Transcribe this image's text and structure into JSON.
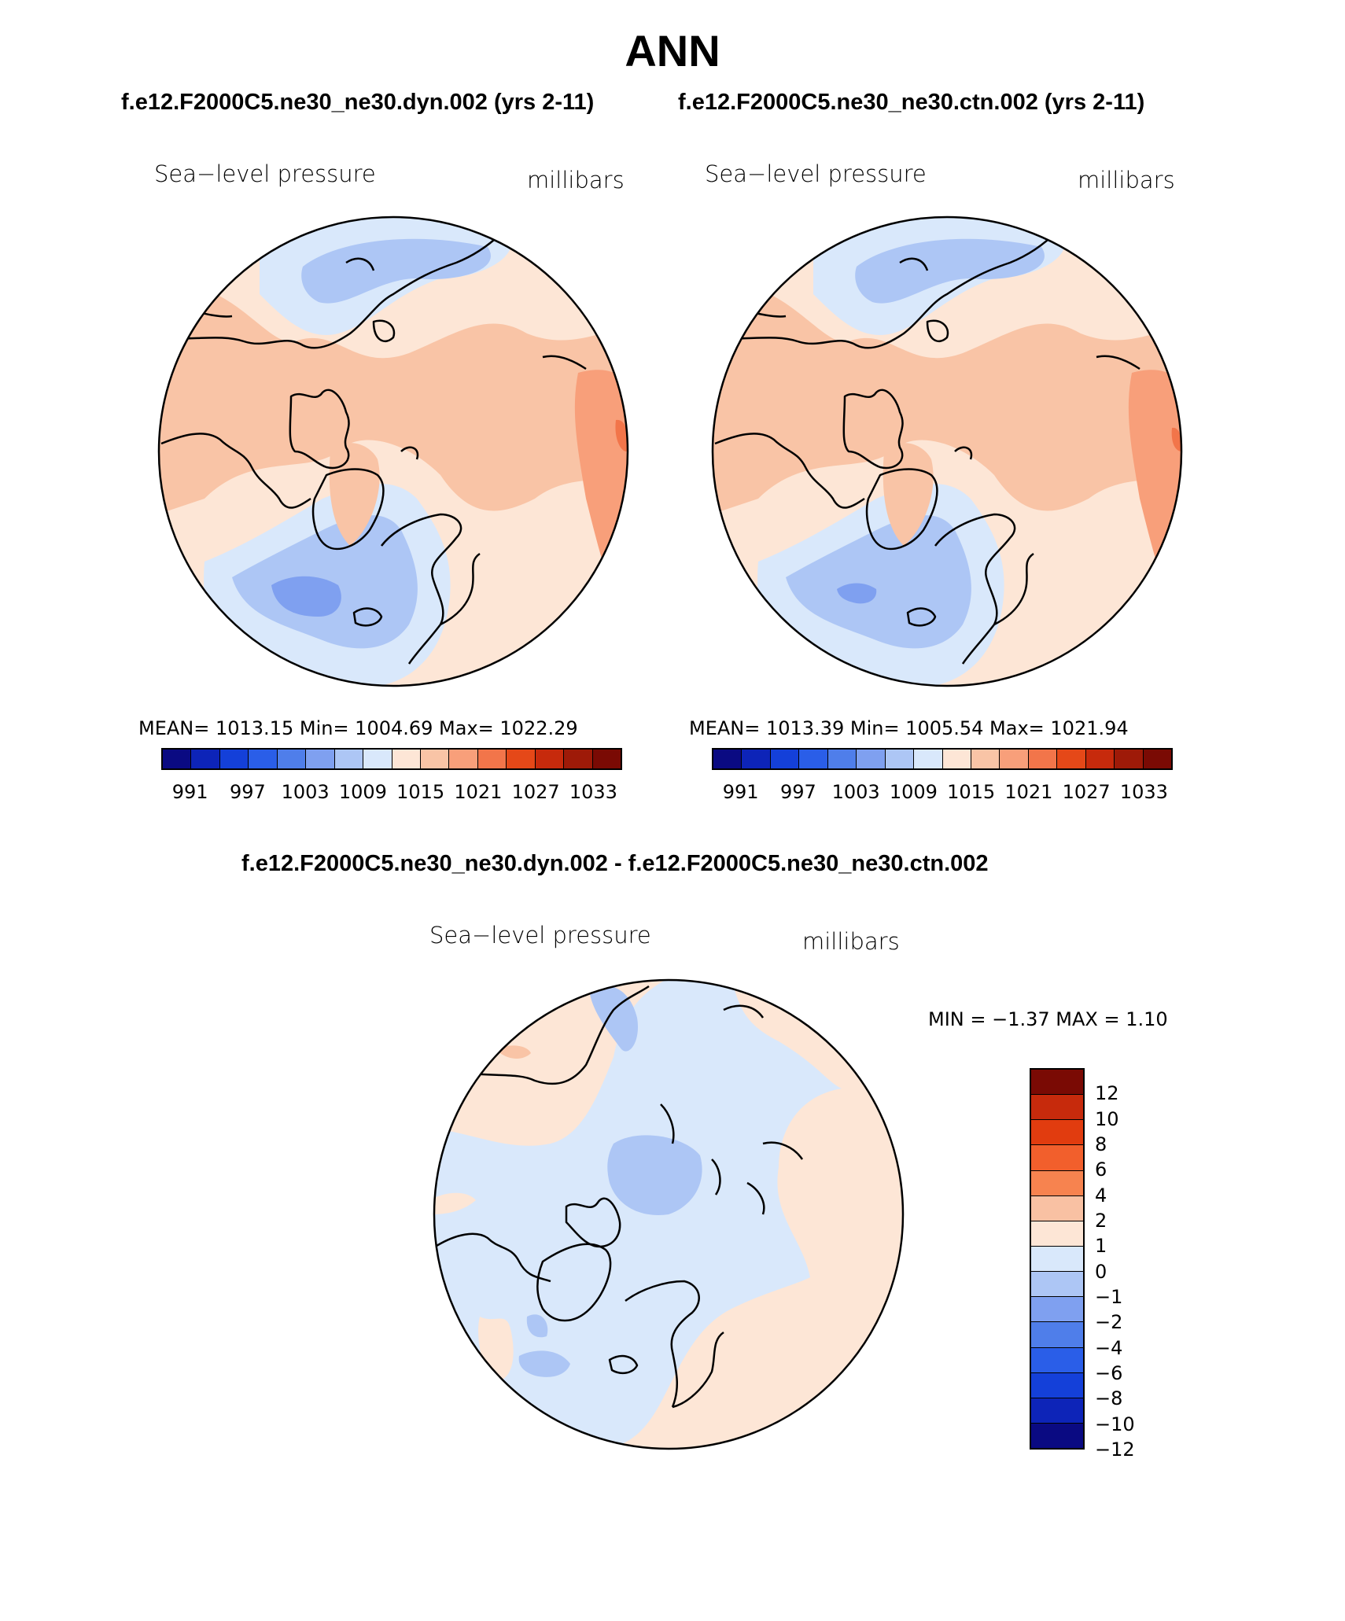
{
  "title": "ANN",
  "top_subtitle_left": "f.e12.F2000C5.ne30_ne30.dyn.002 (yrs 2-11)",
  "top_subtitle_right": "f.e12.F2000C5.ne30_ne30.ctn.002 (yrs 2-11)",
  "diff_subtitle": "f.e12.F2000C5.ne30_ne30.dyn.002 - f.e12.F2000C5.ne30_ne30.ctn.002",
  "panels": [
    {
      "variable": "Sea−level pressure",
      "units": "millibars",
      "stats": "MEAN= 1013.15   Min= 1004.69   Max= 1022.29"
    },
    {
      "variable": "Sea−level pressure",
      "units": "millibars",
      "stats": "MEAN= 1013.39   Min= 1005.54   Max= 1021.94"
    }
  ],
  "diff_panel": {
    "variable": "Sea−level pressure",
    "units": "millibars",
    "minmax": "MIN =   −1.37  MAX =     1.10"
  },
  "abs_colorbar": {
    "colors": [
      "#0a0a82",
      "#0d24b8",
      "#1440d9",
      "#2a5ee8",
      "#4f7eea",
      "#7fa0f0",
      "#adc6f5",
      "#d9e8fb",
      "#fde6d6",
      "#f9c4a6",
      "#f89f7a",
      "#f2754a",
      "#e54818",
      "#c72a0c",
      "#9e1a08",
      "#7a0a04"
    ],
    "tick_labels": [
      "991",
      "997",
      "1003",
      "1009",
      "1015",
      "1021",
      "1027",
      "1033"
    ]
  },
  "diff_colorbar": {
    "colors_top_to_bottom": [
      "#7a0a04",
      "#c72a0c",
      "#e13c0f",
      "#f25f2c",
      "#f7834f",
      "#f9c1a3",
      "#fde6d6",
      "#d9e8fb",
      "#adc6f5",
      "#7fa0f0",
      "#4f7eea",
      "#2a5ee8",
      "#1440d9",
      "#0d24b8",
      "#0a0a82"
    ],
    "tick_labels": [
      "12",
      "10",
      "8",
      "6",
      "4",
      "2",
      "1",
      "0",
      "−1",
      "−2",
      "−4",
      "−6",
      "−8",
      "−10",
      "−12"
    ]
  },
  "chart_data": [
    {
      "type": "heatmap",
      "title": "Sea−level pressure",
      "units": "millibars",
      "run": "f.e12.F2000C5.ne30_ne30.dyn.002 (yrs 2-11)",
      "mean": 1013.15,
      "min": 1004.69,
      "max": 1022.29,
      "projection": "north polar stereographic",
      "contour_levels": [
        991,
        994,
        997,
        1000,
        1003,
        1006,
        1009,
        1012,
        1015,
        1018,
        1021,
        1024,
        1027,
        1030,
        1033
      ]
    },
    {
      "type": "heatmap",
      "title": "Sea−level pressure",
      "units": "millibars",
      "run": "f.e12.F2000C5.ne30_ne30.ctn.002 (yrs 2-11)",
      "mean": 1013.39,
      "min": 1005.54,
      "max": 1021.94,
      "projection": "north polar stereographic",
      "contour_levels": [
        991,
        994,
        997,
        1000,
        1003,
        1006,
        1009,
        1012,
        1015,
        1018,
        1021,
        1024,
        1027,
        1030,
        1033
      ]
    },
    {
      "type": "heatmap",
      "title": "Sea−level pressure",
      "units": "millibars",
      "run": "f.e12.F2000C5.ne30_ne30.dyn.002 - f.e12.F2000C5.ne30_ne30.ctn.002",
      "min": -1.37,
      "max": 1.1,
      "projection": "north polar stereographic",
      "contour_levels": [
        -12,
        -10,
        -8,
        -6,
        -4,
        -2,
        -1,
        0,
        1,
        2,
        4,
        6,
        8,
        10,
        12
      ]
    }
  ]
}
